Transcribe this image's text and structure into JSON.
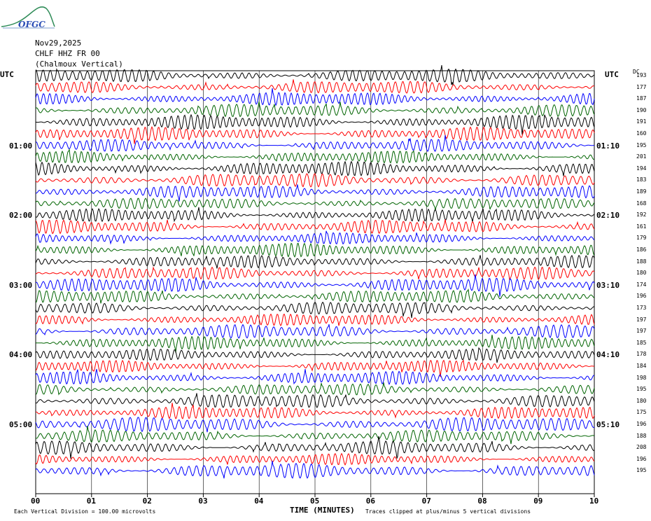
{
  "logo": {
    "text": "OFGC"
  },
  "header": {
    "date": "Nov29,2025",
    "station": "CHLF HHZ FR 00",
    "name": "(Chalmoux Vertical)"
  },
  "utc_left": "UTC",
  "utc_right": "UTC",
  "dc_label": "DC",
  "left_time_labels": [
    "01:00",
    "02:00",
    "03:00",
    "04:00",
    "05:00"
  ],
  "right_time_labels": [
    "01:10",
    "02:10",
    "03:10",
    "04:10",
    "05:10"
  ],
  "dc_values": [
    "193",
    "177",
    "187",
    "190",
    "191",
    "160",
    "195",
    "201",
    "194",
    "183",
    "189",
    "168",
    "192",
    "161",
    "179",
    "186",
    "188",
    "180",
    "174",
    "196",
    "173",
    "197",
    "197",
    "185",
    "178",
    "184",
    "198",
    "195",
    "180",
    "175",
    "196",
    "188",
    "208",
    "196",
    "195"
  ],
  "trace_colors": [
    "#000000",
    "#ff0000",
    "#0000ff",
    "#006400"
  ],
  "footer": {
    "scale_note": "Each Vertical Division =  100.00 microvolts",
    "x_title": "TIME (MINUTES)",
    "clip_note": "Traces clipped at plus/minus 5 vertical divisions"
  },
  "chart_data": {
    "type": "line",
    "title": "CHLF HHZ FR 00 (Chalmoux Vertical)",
    "xlabel": "TIME (MINUTES)",
    "xlim": [
      0,
      10
    ],
    "x_ticks": [
      "00",
      "01",
      "02",
      "03",
      "04",
      "05",
      "06",
      "07",
      "08",
      "09",
      "10"
    ],
    "rows": 35,
    "minutes_per_row": 10,
    "grid": true
  }
}
